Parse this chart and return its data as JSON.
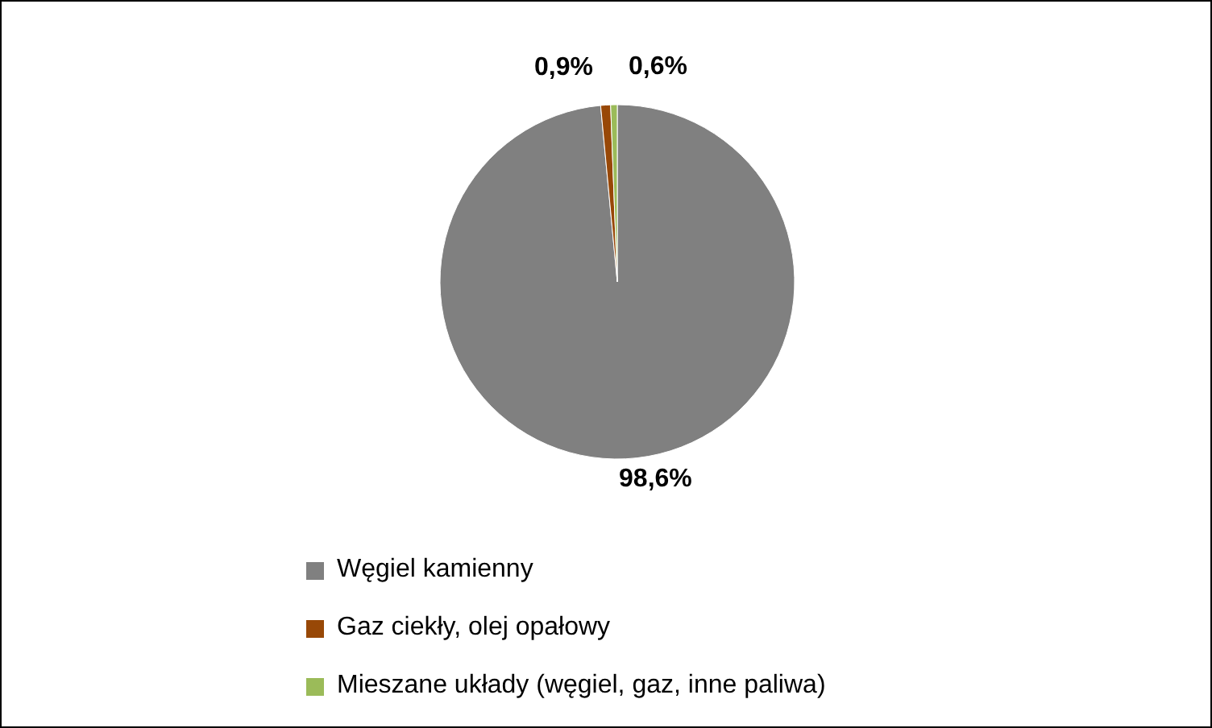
{
  "chart_data": {
    "type": "pie",
    "categories": [
      "Węgiel kamienny",
      "Gaz ciekły, olej opałowy",
      "Mieszane układy (węgiel, gaz, inne paliwa)"
    ],
    "values": [
      98.6,
      0.9,
      0.6
    ],
    "colors": [
      "#808080",
      "#984807",
      "#9bbb59"
    ],
    "value_labels": [
      "98,6%",
      "0,9%",
      "0,6%"
    ],
    "legend": "bottom"
  }
}
